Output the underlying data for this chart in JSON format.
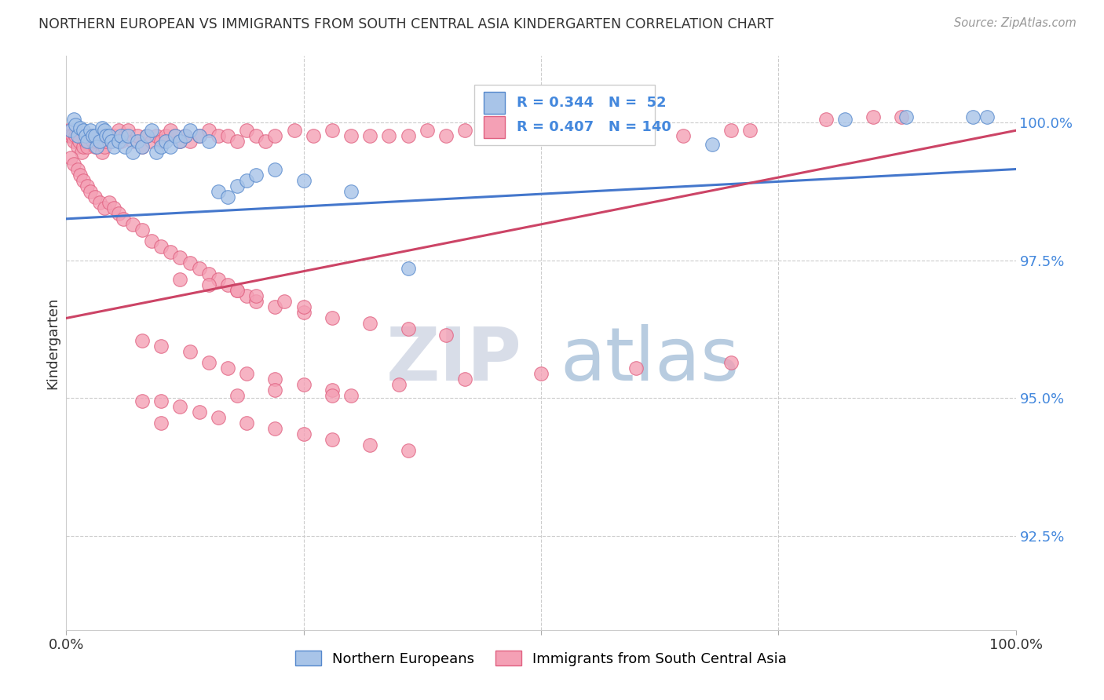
{
  "title": "NORTHERN EUROPEAN VS IMMIGRANTS FROM SOUTH CENTRAL ASIA KINDERGARTEN CORRELATION CHART",
  "source": "Source: ZipAtlas.com",
  "ylabel": "Kindergarten",
  "ytick_labels": [
    "100.0%",
    "97.5%",
    "95.0%",
    "92.5%"
  ],
  "ytick_values": [
    1.0,
    0.975,
    0.95,
    0.925
  ],
  "xlim": [
    0.0,
    1.0
  ],
  "ylim": [
    0.908,
    1.012
  ],
  "blue_R": 0.344,
  "blue_N": 52,
  "pink_R": 0.407,
  "pink_N": 140,
  "blue_fill": "#a8c4e8",
  "pink_fill": "#f4a0b5",
  "blue_edge": "#5588cc",
  "pink_edge": "#e06080",
  "blue_line": "#4477cc",
  "pink_line": "#cc4466",
  "legend_label_blue": "Northern Europeans",
  "legend_label_pink": "Immigrants from South Central Asia",
  "grid_color": "#cccccc",
  "title_color": "#333333",
  "ytick_color": "#4488dd",
  "xtick_color": "#333333",
  "blue_trend_x": [
    0.0,
    1.0
  ],
  "blue_trend_y": [
    0.9825,
    0.9915
  ],
  "pink_trend_x": [
    0.0,
    1.0
  ],
  "pink_trend_y": [
    0.9645,
    0.9985
  ],
  "blue_x": [
    0.005,
    0.008,
    0.01,
    0.012,
    0.015,
    0.018,
    0.02,
    0.022,
    0.025,
    0.028,
    0.03,
    0.032,
    0.035,
    0.038,
    0.04,
    0.042,
    0.045,
    0.048,
    0.05,
    0.055,
    0.058,
    0.062,
    0.065,
    0.07,
    0.075,
    0.08,
    0.085,
    0.09,
    0.095,
    0.1,
    0.105,
    0.11,
    0.115,
    0.12,
    0.125,
    0.13,
    0.14,
    0.15,
    0.16,
    0.17,
    0.18,
    0.19,
    0.2,
    0.22,
    0.25,
    0.3,
    0.36,
    0.68,
    0.82,
    0.885,
    0.955,
    0.97
  ],
  "blue_y": [
    0.9985,
    1.0005,
    0.9995,
    0.9975,
    0.999,
    0.9985,
    0.9975,
    0.9965,
    0.9985,
    0.9975,
    0.9975,
    0.9955,
    0.9965,
    0.999,
    0.9985,
    0.9975,
    0.9975,
    0.9965,
    0.9955,
    0.9965,
    0.9975,
    0.9955,
    0.9975,
    0.9945,
    0.9965,
    0.9955,
    0.9975,
    0.9985,
    0.9945,
    0.9955,
    0.9965,
    0.9955,
    0.9975,
    0.9965,
    0.9975,
    0.9985,
    0.9975,
    0.9965,
    0.9875,
    0.9865,
    0.9885,
    0.9895,
    0.9905,
    0.9915,
    0.9895,
    0.9875,
    0.9735,
    0.996,
    1.0005,
    1.001,
    1.001,
    1.001
  ],
  "pink_x": [
    0.002,
    0.004,
    0.006,
    0.008,
    0.01,
    0.012,
    0.014,
    0.016,
    0.018,
    0.02,
    0.022,
    0.025,
    0.028,
    0.03,
    0.032,
    0.035,
    0.038,
    0.04,
    0.042,
    0.045,
    0.048,
    0.05,
    0.055,
    0.058,
    0.062,
    0.065,
    0.07,
    0.075,
    0.08,
    0.085,
    0.09,
    0.095,
    0.1,
    0.105,
    0.11,
    0.115,
    0.12,
    0.125,
    0.13,
    0.14,
    0.15,
    0.16,
    0.17,
    0.18,
    0.19,
    0.2,
    0.21,
    0.22,
    0.24,
    0.26,
    0.28,
    0.3,
    0.32,
    0.34,
    0.36,
    0.38,
    0.4,
    0.42,
    0.45,
    0.48,
    0.5,
    0.52,
    0.55,
    0.6,
    0.65,
    0.7,
    0.72,
    0.8,
    0.85,
    0.88,
    0.005,
    0.008,
    0.012,
    0.015,
    0.018,
    0.022,
    0.025,
    0.03,
    0.035,
    0.04,
    0.045,
    0.05,
    0.055,
    0.06,
    0.07,
    0.08,
    0.09,
    0.1,
    0.11,
    0.12,
    0.13,
    0.14,
    0.15,
    0.16,
    0.17,
    0.18,
    0.19,
    0.2,
    0.22,
    0.25,
    0.28,
    0.32,
    0.36,
    0.4,
    0.12,
    0.15,
    0.18,
    0.2,
    0.23,
    0.25,
    0.08,
    0.1,
    0.13,
    0.15,
    0.17,
    0.19,
    0.22,
    0.25,
    0.28,
    0.3,
    0.1,
    0.12,
    0.14,
    0.16,
    0.19,
    0.22,
    0.25,
    0.28,
    0.32,
    0.36,
    0.08,
    0.1,
    0.18,
    0.22,
    0.28,
    0.35,
    0.42,
    0.5,
    0.6,
    0.7
  ],
  "pink_y": [
    0.9985,
    0.9975,
    0.9975,
    0.9965,
    0.9975,
    0.9955,
    0.9965,
    0.9945,
    0.9955,
    0.9965,
    0.9955,
    0.9975,
    0.9965,
    0.9955,
    0.9965,
    0.9975,
    0.9945,
    0.9955,
    0.9965,
    0.9975,
    0.9965,
    0.9975,
    0.9985,
    0.9965,
    0.9975,
    0.9985,
    0.9965,
    0.9975,
    0.9955,
    0.9975,
    0.9965,
    0.9975,
    0.9965,
    0.9975,
    0.9985,
    0.9975,
    0.9965,
    0.9975,
    0.9965,
    0.9975,
    0.9985,
    0.9975,
    0.9975,
    0.9965,
    0.9985,
    0.9975,
    0.9965,
    0.9975,
    0.9985,
    0.9975,
    0.9985,
    0.9975,
    0.9975,
    0.9975,
    0.9975,
    0.9985,
    0.9975,
    0.9985,
    0.9985,
    0.9985,
    0.9985,
    0.9975,
    0.9975,
    0.9975,
    0.9975,
    0.9985,
    0.9985,
    1.0005,
    1.001,
    1.001,
    0.9935,
    0.9925,
    0.9915,
    0.9905,
    0.9895,
    0.9885,
    0.9875,
    0.9865,
    0.9855,
    0.9845,
    0.9855,
    0.9845,
    0.9835,
    0.9825,
    0.9815,
    0.9805,
    0.9785,
    0.9775,
    0.9765,
    0.9755,
    0.9745,
    0.9735,
    0.9725,
    0.9715,
    0.9705,
    0.9695,
    0.9685,
    0.9675,
    0.9665,
    0.9655,
    0.9645,
    0.9635,
    0.9625,
    0.9615,
    0.9715,
    0.9705,
    0.9695,
    0.9685,
    0.9675,
    0.9665,
    0.9605,
    0.9595,
    0.9585,
    0.9565,
    0.9555,
    0.9545,
    0.9535,
    0.9525,
    0.9515,
    0.9505,
    0.9495,
    0.9485,
    0.9475,
    0.9465,
    0.9455,
    0.9445,
    0.9435,
    0.9425,
    0.9415,
    0.9405,
    0.9495,
    0.9455,
    0.9505,
    0.9515,
    0.9505,
    0.9525,
    0.9535,
    0.9545,
    0.9555,
    0.9565
  ]
}
